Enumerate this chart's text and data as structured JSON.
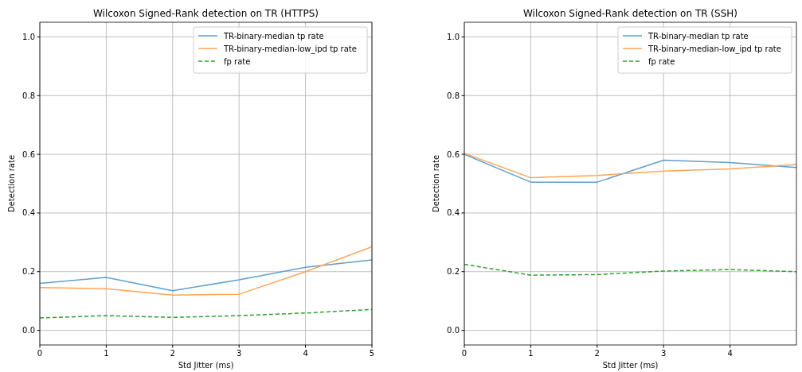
{
  "chart_data": [
    {
      "type": "line",
      "title": "Wilcoxon Signed-Rank detection on TR (HTTPS)",
      "xlabel": "Std Jitter (ms)",
      "ylabel": "Detection rate",
      "x": [
        0,
        1,
        2,
        3,
        4,
        5
      ],
      "xlim": [
        0,
        5
      ],
      "xticks": [
        0,
        1,
        2,
        3,
        4,
        5
      ],
      "ylim": [
        -0.05,
        1.05
      ],
      "yticks": [
        {
          "value": 0,
          "label": "0.0"
        },
        {
          "value": 0.2,
          "label": "0.2"
        },
        {
          "value": 0.4,
          "label": "0.4"
        },
        {
          "value": 0.6,
          "label": "0.6"
        },
        {
          "value": 0.8,
          "label": "0.8"
        },
        {
          "value": 1,
          "label": "1.0"
        }
      ],
      "grid": true,
      "legend": "top right",
      "series": [
        {
          "name": "TR-binary-median tp rate",
          "color": "#5f9fcf",
          "values": [
            0.16,
            0.18,
            0.135,
            0.172,
            0.215,
            0.24
          ]
        },
        {
          "name": "TR-binary-median-low_ipd tp rate",
          "color": "#ffa556",
          "values": [
            0.146,
            0.142,
            0.12,
            0.123,
            0.2,
            0.285
          ]
        },
        {
          "name": "fp rate",
          "color": "#2ca02c",
          "line_style": "dashed",
          "values": [
            0.042,
            0.05,
            0.044,
            0.05,
            0.059,
            0.071
          ]
        }
      ]
    },
    {
      "type": "line",
      "title": "Wilcoxon Signed-Rank detection on TR (SSH)",
      "xlabel": "Std Jitter (ms)",
      "ylabel": "Detection rate",
      "x": [
        0,
        1,
        2,
        3,
        4,
        5
      ],
      "xlim": [
        0,
        5
      ],
      "xticks": [
        0,
        1,
        2,
        3,
        4
      ],
      "ylim": [
        -0.05,
        1.05
      ],
      "yticks": [
        {
          "value": 0,
          "label": "0.0"
        },
        {
          "value": 0.2,
          "label": "0.2"
        },
        {
          "value": 0.4,
          "label": "0.4"
        },
        {
          "value": 0.6,
          "label": "0.6"
        },
        {
          "value": 0.8,
          "label": "0.8"
        },
        {
          "value": 1,
          "label": "1.0"
        }
      ],
      "grid": true,
      "legend": "top right",
      "series": [
        {
          "name": "TR-binary-median tp rate",
          "color": "#5f9fcf",
          "values": [
            0.6,
            0.505,
            0.505,
            0.58,
            0.572,
            0.555
          ]
        },
        {
          "name": "TR-binary-median-low_ipd tp rate",
          "color": "#ffa556",
          "values": [
            0.603,
            0.52,
            0.528,
            0.543,
            0.55,
            0.565
          ]
        },
        {
          "name": "fp rate",
          "color": "#2ca02c",
          "line_style": "dashed",
          "values": [
            0.225,
            0.188,
            0.19,
            0.202,
            0.207,
            0.2
          ]
        }
      ]
    }
  ]
}
